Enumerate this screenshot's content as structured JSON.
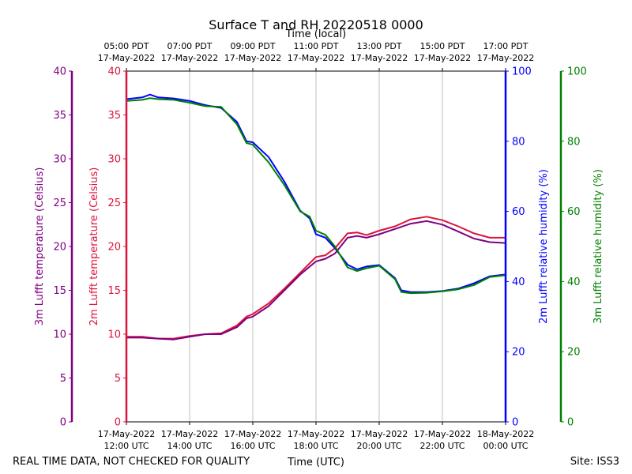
{
  "chart_data": {
    "type": "line",
    "title": "Surface T and RH 20220518 0000",
    "top_axis_label": "Time (local)",
    "bottom_axis_label": "Time (UTC)",
    "footer_left": "REAL TIME DATA, NOT CHECKED FOR QUALITY",
    "footer_right": "Site: ISS3",
    "x_unit": "hours after 17-May-2022 12:00 UTC",
    "xlim": [
      0,
      12
    ],
    "local_ticks": [
      {
        "x": 0,
        "time": "05:00 PDT",
        "date": "17-May-2022"
      },
      {
        "x": 2,
        "time": "07:00 PDT",
        "date": "17-May-2022"
      },
      {
        "x": 4,
        "time": "09:00 PDT",
        "date": "17-May-2022"
      },
      {
        "x": 6,
        "time": "11:00 PDT",
        "date": "17-May-2022"
      },
      {
        "x": 8,
        "time": "13:00 PDT",
        "date": "17-May-2022"
      },
      {
        "x": 10,
        "time": "15:00 PDT",
        "date": "17-May-2022"
      },
      {
        "x": 12,
        "time": "17:00 PDT",
        "date": "17-May-2022"
      }
    ],
    "utc_ticks": [
      {
        "x": 0,
        "date": "17-May-2022",
        "time": "12:00 UTC"
      },
      {
        "x": 2,
        "date": "17-May-2022",
        "time": "14:00 UTC"
      },
      {
        "x": 4,
        "date": "17-May-2022",
        "time": "16:00 UTC"
      },
      {
        "x": 6,
        "date": "17-May-2022",
        "time": "18:00 UTC"
      },
      {
        "x": 8,
        "date": "17-May-2022",
        "time": "20:00 UTC"
      },
      {
        "x": 10,
        "date": "17-May-2022",
        "time": "22:00 UTC"
      },
      {
        "x": 12,
        "date": "18-May-2022",
        "time": "00:00 UTC"
      }
    ],
    "axes": [
      {
        "id": "t3",
        "label": "3m Lufft temperature (Celsius)",
        "color": "#800080",
        "ylim": [
          0,
          40
        ],
        "ticks": [
          0,
          5,
          10,
          15,
          20,
          25,
          30,
          35,
          40
        ]
      },
      {
        "id": "t2",
        "label": "2m Lufft temperature (Celsius)",
        "color": "#dc143c",
        "ylim": [
          0,
          40
        ],
        "ticks": [
          0,
          5,
          10,
          15,
          20,
          25,
          30,
          35,
          40
        ]
      },
      {
        "id": "rh2",
        "label": "2m Lufft relative humidity (%)",
        "color": "#0000ff",
        "ylim": [
          0,
          100
        ],
        "ticks": [
          0,
          20,
          40,
          60,
          80,
          100
        ]
      },
      {
        "id": "rh3",
        "label": "3m Lufft relative humidity (%)",
        "color": "#008000",
        "ylim": [
          0,
          100
        ],
        "ticks": [
          0,
          20,
          40,
          60,
          80,
          100
        ]
      }
    ],
    "series": [
      {
        "name": "2m temperature",
        "axis": "t2",
        "color": "#dc143c",
        "x": [
          0,
          0.5,
          1,
          1.5,
          2,
          2.5,
          3,
          3.5,
          3.8,
          4,
          4.5,
          5,
          5.5,
          6,
          6.3,
          6.6,
          7,
          7.3,
          7.6,
          8,
          8.5,
          9,
          9.5,
          10,
          10.5,
          11,
          11.5,
          12
        ],
        "y": [
          9.7,
          9.7,
          9.5,
          9.5,
          9.8,
          10.0,
          10.1,
          11.0,
          12.0,
          12.3,
          13.5,
          15.2,
          17.0,
          18.8,
          19.0,
          19.8,
          21.5,
          21.6,
          21.3,
          21.8,
          22.3,
          23.1,
          23.4,
          23.0,
          22.3,
          21.5,
          21.0,
          21.0
        ]
      },
      {
        "name": "3m temperature",
        "axis": "t3",
        "color": "#800080",
        "x": [
          0,
          0.5,
          1,
          1.5,
          2,
          2.5,
          3,
          3.5,
          3.8,
          4,
          4.5,
          5,
          5.5,
          6,
          6.3,
          6.6,
          7,
          7.3,
          7.6,
          8,
          8.5,
          9,
          9.5,
          10,
          10.5,
          11,
          11.5,
          12
        ],
        "y": [
          9.6,
          9.6,
          9.5,
          9.4,
          9.7,
          10.0,
          10.0,
          10.8,
          11.8,
          12.0,
          13.2,
          15.0,
          16.8,
          18.3,
          18.6,
          19.2,
          21.0,
          21.2,
          21.0,
          21.4,
          22.0,
          22.6,
          22.9,
          22.5,
          21.7,
          20.9,
          20.5,
          20.4
        ]
      },
      {
        "name": "2m relative humidity",
        "axis": "rh2",
        "color": "#0000ff",
        "x": [
          0,
          0.5,
          0.75,
          1,
          1.5,
          2,
          2.5,
          3,
          3.5,
          3.8,
          4,
          4.5,
          5,
          5.5,
          5.8,
          6,
          6.3,
          6.6,
          7,
          7.3,
          7.6,
          8,
          8.5,
          8.7,
          9,
          9.5,
          10,
          10.5,
          11,
          11.5,
          12
        ],
        "y": [
          92,
          92.5,
          93.3,
          92.5,
          92.2,
          91.5,
          90.3,
          89.5,
          85.5,
          80.0,
          79.7,
          75.5,
          68.5,
          60.2,
          58.0,
          53.5,
          52.5,
          49.5,
          44.8,
          43.5,
          44.3,
          44.7,
          41.0,
          37.5,
          37.0,
          37.0,
          37.3,
          38.0,
          39.5,
          41.5,
          42.0
        ]
      },
      {
        "name": "3m relative humidity",
        "axis": "rh3",
        "color": "#008000",
        "x": [
          0,
          0.5,
          0.75,
          1,
          1.5,
          2,
          2.5,
          3,
          3.5,
          3.8,
          4,
          4.5,
          5,
          5.5,
          5.8,
          6,
          6.3,
          6.6,
          7,
          7.3,
          7.6,
          8,
          8.5,
          8.7,
          9,
          9.5,
          10,
          10.5,
          11,
          11.5,
          12
        ],
        "y": [
          91.5,
          91.8,
          92.3,
          92.0,
          91.8,
          91.0,
          90.0,
          89.8,
          84.8,
          79.5,
          79.0,
          74.0,
          67.5,
          60.0,
          58.5,
          54.5,
          53.3,
          50.0,
          44.0,
          43.0,
          43.8,
          44.5,
          40.7,
          37.0,
          36.7,
          36.8,
          37.2,
          37.8,
          39.0,
          41.3,
          41.8
        ]
      }
    ]
  }
}
